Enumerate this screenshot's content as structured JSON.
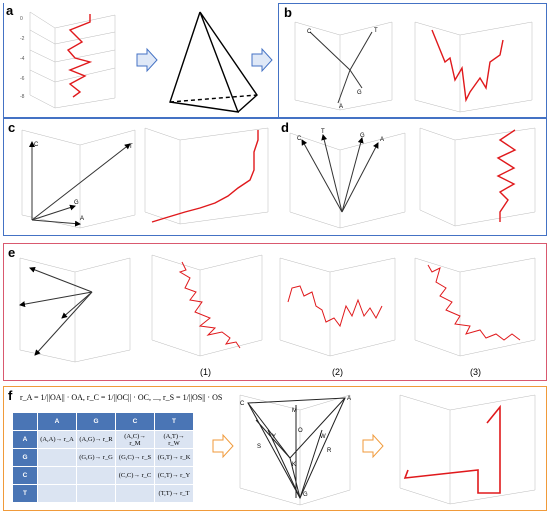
{
  "panels": {
    "a": "a",
    "b": "b",
    "c": "c",
    "d": "d",
    "e": "e",
    "f": "f"
  },
  "labels_b": {
    "C": "C",
    "T": "T",
    "G": "G",
    "A": "A"
  },
  "labels_c": {
    "C": "C",
    "T": "T",
    "G": "G",
    "A": "A"
  },
  "labels_d": {
    "C": "C",
    "T": "T",
    "G": "G",
    "A": "A"
  },
  "labels_f": {
    "C": "C",
    "A": "A",
    "M": "M",
    "S": "S",
    "Y": "Y",
    "O": "O",
    "W": "W",
    "R": "R",
    "K": "K",
    "G": "G"
  },
  "sublabels_e": [
    "(1)",
    "(2)",
    "(3)"
  ],
  "formula": "r_A = 1/||OA|| · OA, r_C = 1/||OC|| · OC, ..., r_S = 1/||OS|| · OS",
  "matrix": {
    "headers": [
      "",
      "A",
      "G",
      "C",
      "T"
    ],
    "rows": [
      [
        "A",
        "(A,A)→ r_A",
        "(A,G)→ r_R",
        "(A,C)→ r_M",
        "(A,T)→ r_W"
      ],
      [
        "G",
        "",
        "(G,G)→ r_G",
        "(G,C)→ r_S",
        "(G,T)→ r_K"
      ],
      [
        "C",
        "",
        "",
        "(C,C)→ r_C",
        "(C,T)→ r_Y"
      ],
      [
        "T",
        "",
        "",
        "",
        "(T,T)→ r_T"
      ]
    ]
  },
  "colors": {
    "walk": "#e0191c",
    "blue_frame": "#4472c4",
    "red_frame": "#d9596f",
    "orange_frame": "#f09a3a",
    "arrow_fill": "#dfe8f7"
  }
}
